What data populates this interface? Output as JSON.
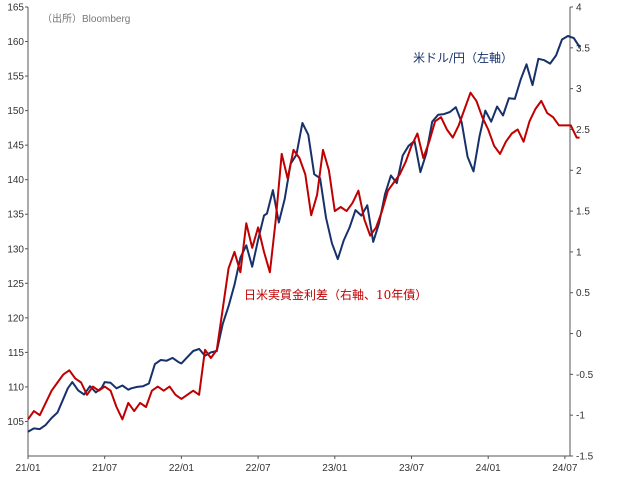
{
  "chart_data": {
    "type": "line",
    "source": "（出所）Bloomberg",
    "x_labels": [
      "21/01",
      "21/07",
      "22/01",
      "22/07",
      "23/01",
      "23/07",
      "24/01",
      "24/07"
    ],
    "left_axis": {
      "ticks": [
        105,
        110,
        115,
        120,
        125,
        130,
        135,
        140,
        145,
        150,
        155,
        160,
        165
      ],
      "range": [
        100,
        165
      ]
    },
    "right_axis": {
      "ticks": [
        -1.5,
        -1,
        -0.5,
        0,
        0.5,
        1,
        1.5,
        2,
        2.5,
        3,
        3.5,
        4
      ],
      "range": [
        -1.5,
        4
      ]
    },
    "grid": false,
    "series": [
      {
        "name": "米ドル/円（左軸）",
        "axis": "left",
        "color": "#17316b",
        "x": [
          0,
          2,
          4,
          6,
          8,
          10,
          12,
          13.5,
          15,
          17,
          19,
          21,
          23,
          25,
          26,
          28,
          30,
          32,
          34,
          35,
          37,
          39,
          41,
          43,
          45,
          47,
          49,
          51,
          52,
          54,
          56,
          58,
          60,
          62,
          64,
          66,
          68,
          70,
          72,
          74,
          76,
          78,
          80,
          81,
          83,
          85,
          87,
          89,
          91,
          93,
          95,
          97,
          99,
          101,
          103,
          105,
          107,
          109,
          111,
          113,
          115,
          117,
          119,
          121,
          123,
          125,
          127,
          129,
          131,
          133,
          135,
          137,
          139,
          141,
          143,
          145,
          147,
          149,
          151,
          153,
          155,
          157,
          159,
          161,
          163,
          165,
          167,
          169,
          171,
          173,
          175,
          177,
          179,
          181,
          183,
          185,
          187
        ],
        "y": [
          103.5,
          104.0,
          103.9,
          104.5,
          105.5,
          106.3,
          108.3,
          109.8,
          110.7,
          109.5,
          108.9,
          110.1,
          109.2,
          109.9,
          110.7,
          110.6,
          109.8,
          110.2,
          109.6,
          109.8,
          110.0,
          110.1,
          110.5,
          113.3,
          113.9,
          113.8,
          114.2,
          113.6,
          113.4,
          114.3,
          115.2,
          115.5,
          114.5,
          115.0,
          115.2,
          119.1,
          121.7,
          124.8,
          128.7,
          130.5,
          127.4,
          131.3,
          134.8,
          135.1,
          138.5,
          133.8,
          137.2,
          142.3,
          143.6,
          148.2,
          146.5,
          140.8,
          140.2,
          134.5,
          130.8,
          128.5,
          131.2,
          133.1,
          135.6,
          134.8,
          136.3,
          131.0,
          133.7,
          137.9,
          140.6,
          139.5,
          143.5,
          144.9,
          145.6,
          141.1,
          143.8,
          148.4,
          149.4,
          149.5,
          149.8,
          150.5,
          148.3,
          143.3,
          141.2,
          146.2,
          150.0,
          148.4,
          150.6,
          149.3,
          151.8,
          151.7,
          154.5,
          156.7,
          153.7,
          157.5,
          157.3,
          156.8,
          158.0,
          160.3,
          160.8,
          160.5,
          159.2
        ]
      },
      {
        "name": "日米実質金利差（右軸、10年債）",
        "axis": "right",
        "color": "#c00000",
        "x": [
          0,
          2,
          4,
          6,
          8,
          10,
          12,
          14,
          16,
          18,
          20,
          22,
          24,
          26,
          28,
          30,
          32,
          34,
          36,
          38,
          40,
          42,
          44,
          46,
          48,
          50,
          52,
          54,
          56,
          58,
          60,
          62,
          64,
          66,
          68,
          70,
          72,
          74,
          76,
          78,
          80,
          82,
          84,
          86,
          88,
          90,
          92,
          94,
          96,
          98,
          100,
          102,
          104,
          106,
          108,
          110,
          112,
          114,
          116,
          118,
          120,
          122,
          124,
          126,
          128,
          130,
          132,
          134,
          136,
          138,
          140,
          142,
          144,
          146,
          148,
          150,
          152,
          154,
          156,
          158,
          160,
          162,
          164,
          166,
          168,
          170,
          172,
          174,
          176,
          178,
          180,
          182,
          184,
          186,
          187
        ],
        "y": [
          -1.05,
          -0.95,
          -1.0,
          -0.85,
          -0.7,
          -0.6,
          -0.5,
          -0.45,
          -0.55,
          -0.6,
          -0.75,
          -0.65,
          -0.7,
          -0.65,
          -0.7,
          -0.9,
          -1.05,
          -0.85,
          -0.95,
          -0.85,
          -0.9,
          -0.7,
          -0.65,
          -0.7,
          -0.65,
          -0.75,
          -0.8,
          -0.75,
          -0.7,
          -0.75,
          -0.2,
          -0.3,
          -0.2,
          0.3,
          0.8,
          1.0,
          0.75,
          1.35,
          1.05,
          1.3,
          1.0,
          0.75,
          1.4,
          2.2,
          1.9,
          2.25,
          2.15,
          1.95,
          1.45,
          1.7,
          2.25,
          2.0,
          1.5,
          1.55,
          1.5,
          1.6,
          1.75,
          1.4,
          1.2,
          1.3,
          1.5,
          1.75,
          1.85,
          1.95,
          2.1,
          2.3,
          2.45,
          2.15,
          2.35,
          2.6,
          2.65,
          2.5,
          2.4,
          2.55,
          2.75,
          2.95,
          2.85,
          2.65,
          2.5,
          2.3,
          2.2,
          2.35,
          2.45,
          2.5,
          2.35,
          2.6,
          2.75,
          2.85,
          2.7,
          2.65,
          2.55,
          2.55,
          2.55,
          2.4,
          2.4
        ]
      }
    ],
    "annotations": [
      {
        "text": "米ドル/円（左軸）",
        "color": "#17316b"
      },
      {
        "text": "日米実質金利差（右軸、10年債）",
        "color": "#c00000"
      }
    ]
  }
}
